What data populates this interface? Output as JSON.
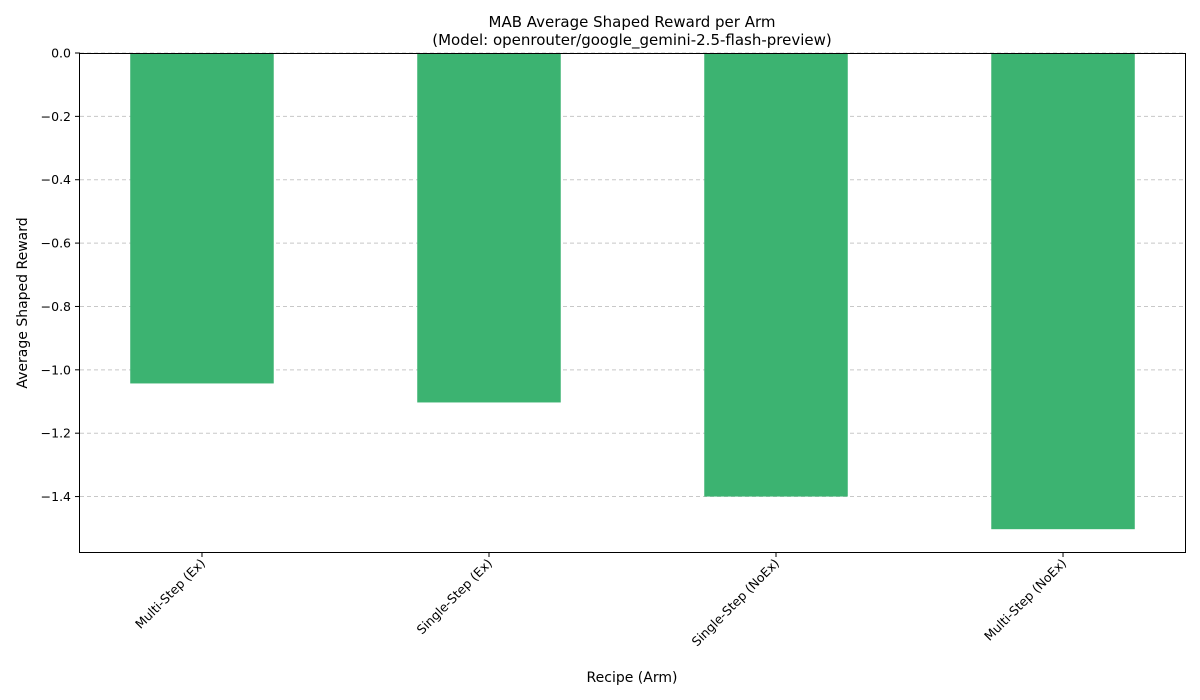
{
  "chart_data": {
    "type": "bar",
    "title": "MAB Average Shaped Reward per Arm",
    "subtitle": "(Model: openrouter/google_gemini-2.5-flash-preview)",
    "xlabel": "Recipe (Arm)",
    "ylabel": "Average Shaped Reward",
    "categories": [
      "Multi-Step (Ex)",
      "Single-Step (Ex)",
      "Single-Step (NoEx)",
      "Multi-Step (NoEx)"
    ],
    "values": [
      -1.043,
      -1.103,
      -1.4,
      -1.503
    ],
    "ylim": [
      -1.575,
      0.0
    ],
    "yticks": [
      0.0,
      -0.2,
      -0.4,
      -0.6,
      -0.8,
      -1.0,
      -1.2,
      -1.4
    ],
    "ytick_labels": [
      "0.0",
      "−0.2",
      "−0.4",
      "−0.6",
      "−0.8",
      "−1.0",
      "−1.2",
      "−1.4"
    ],
    "grid": "y-dashed",
    "bar_color": "#3cb371",
    "grid_color": "#c8c8c8"
  }
}
